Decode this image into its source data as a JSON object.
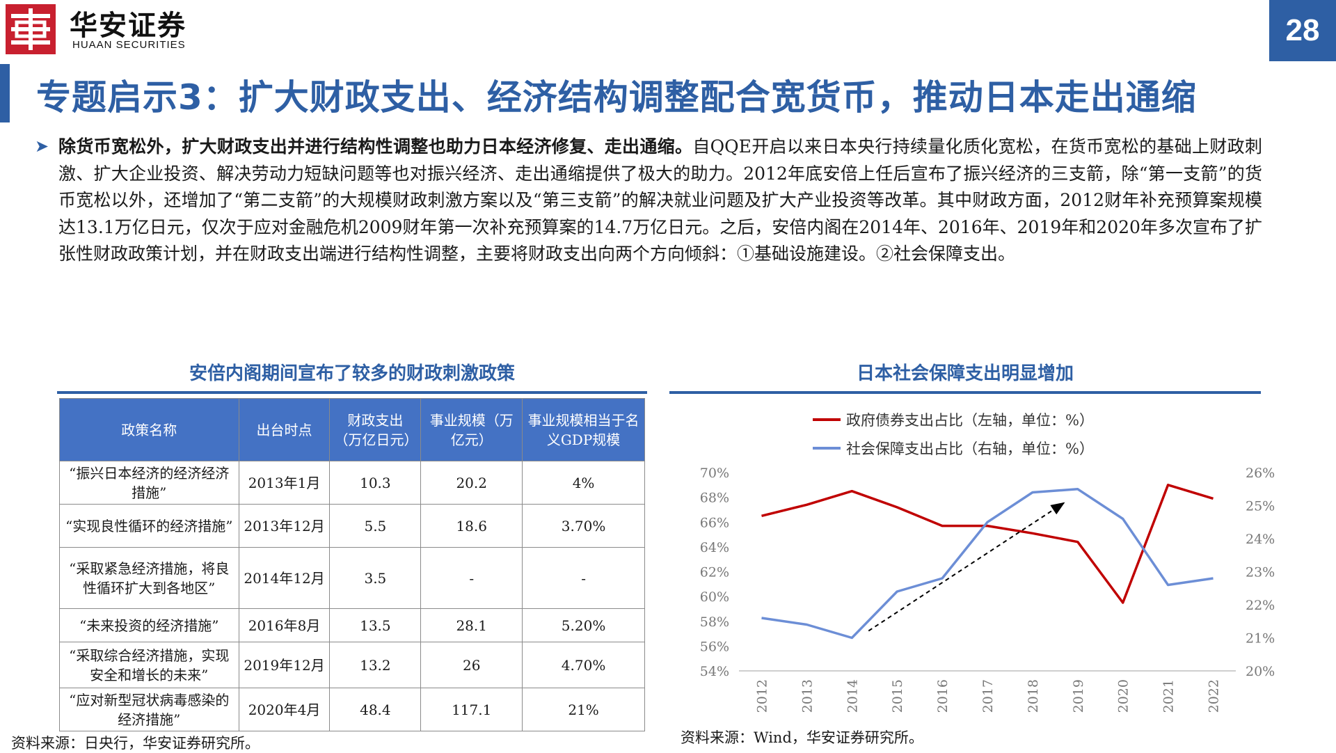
{
  "header": {
    "brand_cn": "华安证券",
    "brand_en": "HUAAN SECURITIES",
    "page_number": "28",
    "brand_color": "#c8202f",
    "accent_color": "#2e5fa4"
  },
  "title": "专题启示3：扩大财政支出、经济结构调整配合宽货币，推动日本走出通缩",
  "paragraph": {
    "bold": "除货币宽松外，扩大财政支出并进行结构性调整也助力日本经济修复、走出通缩。",
    "text": "自QQE开启以来日本央行持续量化质化宽松，在货币宽松的基础上财政刺激、扩大企业投资、解决劳动力短缺问题等也对振兴经济、走出通缩提供了极大的助力。2012年底安倍上任后宣布了振兴经济的三支箭，除“第一支箭”的货币宽松以外，还增加了“第二支箭”的大规模财政刺激方案以及“第三支箭”的解决就业问题及扩大产业投资等改革。其中财政方面，2012财年补充预算案规模达13.1万亿日元，仅次于应对金融危机2009财年第一次补充预算案的14.7万亿日元。之后，安倍内阁在2014年、2016年、2019年和2020年多次宣布了扩张性财政政策计划，并在财政支出端进行结构性调整，主要将财政支出向两个方向倾斜：①基础设施建设。②社会保障支出。"
  },
  "left": {
    "title": "安倍内阁期间宣布了较多的财政刺激政策",
    "headers": [
      "政策名称",
      "出台时点",
      "财政支出（万亿日元）",
      "事业规模（万亿元）",
      "事业规模相当于名义GDP规模"
    ],
    "rows": [
      [
        "“振兴日本经济的经济经济措施”",
        "2013年1月",
        "10.3",
        "20.2",
        "4%"
      ],
      [
        "“实现良性循环的经济措施”",
        "2013年12月",
        "5.5",
        "18.6",
        "3.70%"
      ],
      [
        "“采取紧急经济措施，将良性循环扩大到各地区”",
        "2014年12月",
        "3.5",
        "-",
        "-"
      ],
      [
        "“未来投资的经济措施”",
        "2016年8月",
        "13.5",
        "28.1",
        "5.20%"
      ],
      [
        "“采取综合经济措施，实现安全和增长的未来”",
        "2019年12月",
        "13.2",
        "26",
        "4.70%"
      ],
      [
        "“应对新型冠状病毒感染的经济措施”",
        "2020年4月",
        "48.4",
        "117.1",
        "21%"
      ]
    ],
    "source": "资料来源：日央行，华安证券研究所。"
  },
  "right": {
    "title": "日本社会保障支出明显增加",
    "source": "资料来源：Wind，华安证券研究所。"
  },
  "chart_data": {
    "type": "line",
    "x": [
      "2012",
      "2013",
      "2014",
      "2015",
      "2016",
      "2017",
      "2018",
      "2019",
      "2020",
      "2021",
      "2022"
    ],
    "series": [
      {
        "name": "政府债券支出占比（左轴，单位：%）",
        "axis": "left",
        "color": "#c00000",
        "values": [
          66.5,
          67.4,
          68.5,
          67.2,
          65.7,
          65.7,
          65.1,
          64.4,
          59.5,
          69.0,
          67.9
        ]
      },
      {
        "name": "社会保障支出占比（右轴，单位：%）",
        "axis": "right",
        "color": "#6c8ed6",
        "values": [
          21.6,
          21.4,
          21.0,
          22.4,
          22.8,
          24.5,
          25.4,
          25.5,
          24.6,
          22.6,
          22.8
        ]
      }
    ],
    "y_left": {
      "min": 54,
      "max": 70,
      "ticks": [
        "54%",
        "56%",
        "58%",
        "60%",
        "62%",
        "64%",
        "66%",
        "68%",
        "70%"
      ]
    },
    "y_right": {
      "min": 20,
      "max": 26,
      "ticks": [
        "20%",
        "21%",
        "22%",
        "23%",
        "24%",
        "25%",
        "26%"
      ]
    },
    "annotation": {
      "type": "dashed-arrow",
      "from": [
        "2014",
        21.0
      ],
      "to": [
        "2019",
        25.5
      ]
    },
    "legend": "top-center",
    "grid": false
  }
}
